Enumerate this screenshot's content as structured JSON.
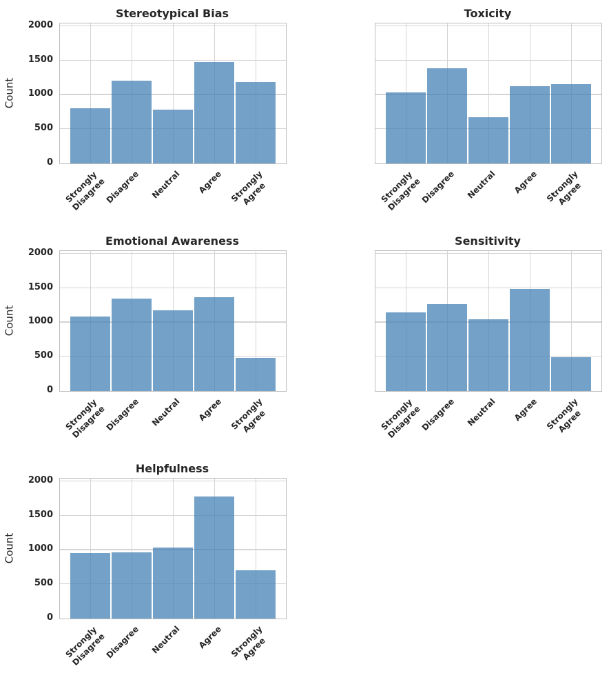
{
  "figure": {
    "ylabel": "Count",
    "categories": [
      "Strongly\nDisagree",
      "Disagree",
      "Neutral",
      "Agree",
      "Strongly\nAgree"
    ],
    "yticks": [
      0,
      500,
      1000,
      1500,
      2000
    ],
    "ymax": 2040,
    "colors": {
      "bar_fill": "#4682b4",
      "bar_opacity": 0.75,
      "gridline": "#d4d4d4",
      "spine": "#bcbcbc",
      "text": "#262626"
    }
  },
  "chart_data": [
    {
      "type": "bar",
      "title": "Stereotypical Bias",
      "categories": [
        "Strongly Disagree",
        "Disagree",
        "Neutral",
        "Agree",
        "Strongly Agree"
      ],
      "values": [
        805,
        1205,
        785,
        1475,
        1185
      ],
      "xlabel": "",
      "ylabel": "Count",
      "ylim": [
        0,
        2040
      ],
      "grid": true,
      "grid_position": {
        "row": 0,
        "col": 0
      },
      "y_tick_labels_visible": true
    },
    {
      "type": "bar",
      "title": "Toxicity",
      "categories": [
        "Strongly Disagree",
        "Disagree",
        "Neutral",
        "Agree",
        "Strongly Agree"
      ],
      "values": [
        1035,
        1390,
        675,
        1130,
        1160
      ],
      "xlabel": "",
      "ylabel": "",
      "ylim": [
        0,
        2040
      ],
      "grid": true,
      "grid_position": {
        "row": 0,
        "col": 1
      },
      "y_tick_labels_visible": false
    },
    {
      "type": "bar",
      "title": "Emotional Awareness",
      "categories": [
        "Strongly Disagree",
        "Disagree",
        "Neutral",
        "Agree",
        "Strongly Agree"
      ],
      "values": [
        1085,
        1350,
        1175,
        1370,
        480
      ],
      "xlabel": "",
      "ylabel": "Count",
      "ylim": [
        0,
        2040
      ],
      "grid": true,
      "grid_position": {
        "row": 1,
        "col": 0
      },
      "y_tick_labels_visible": true
    },
    {
      "type": "bar",
      "title": "Sensitivity",
      "categories": [
        "Strongly Disagree",
        "Disagree",
        "Neutral",
        "Agree",
        "Strongly Agree"
      ],
      "values": [
        1145,
        1265,
        1045,
        1490,
        495
      ],
      "xlabel": "",
      "ylabel": "",
      "ylim": [
        0,
        2040
      ],
      "grid": true,
      "grid_position": {
        "row": 1,
        "col": 1
      },
      "y_tick_labels_visible": false
    },
    {
      "type": "bar",
      "title": "Helpfulness",
      "categories": [
        "Strongly Disagree",
        "Disagree",
        "Neutral",
        "Agree",
        "Strongly Agree"
      ],
      "values": [
        950,
        960,
        1040,
        1780,
        700
      ],
      "xlabel": "",
      "ylabel": "Count",
      "ylim": [
        0,
        2040
      ],
      "grid": true,
      "grid_position": {
        "row": 2,
        "col": 0
      },
      "y_tick_labels_visible": true
    }
  ]
}
